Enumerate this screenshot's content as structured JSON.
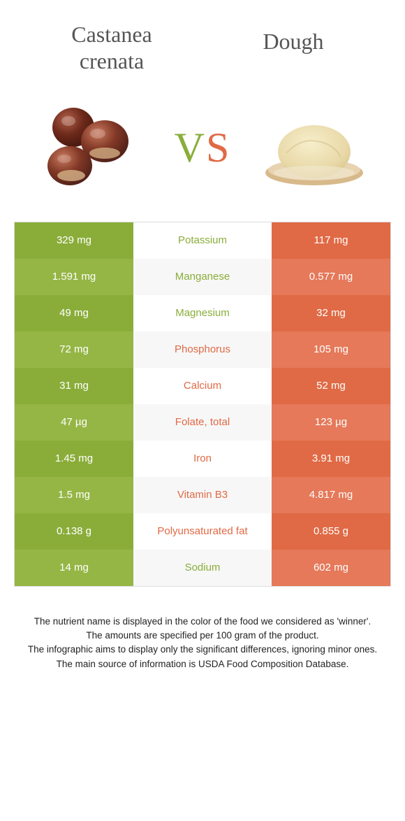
{
  "colors": {
    "green": "#8aad3a",
    "green_alt": "#95b645",
    "orange": "#e06a45",
    "orange_alt": "#e5795a",
    "text": "#555555",
    "footer_text": "#222222"
  },
  "header": {
    "left_title_line1": "Castanea",
    "left_title_line2": "crenata",
    "right_title": "Dough"
  },
  "vs": {
    "v": "V",
    "s": "S"
  },
  "rows": [
    {
      "left": "329 mg",
      "label": "Potassium",
      "right": "117 mg",
      "winner": "left"
    },
    {
      "left": "1.591 mg",
      "label": "Manganese",
      "right": "0.577 mg",
      "winner": "left"
    },
    {
      "left": "49 mg",
      "label": "Magnesium",
      "right": "32 mg",
      "winner": "left"
    },
    {
      "left": "72 mg",
      "label": "Phosphorus",
      "right": "105 mg",
      "winner": "right"
    },
    {
      "left": "31 mg",
      "label": "Calcium",
      "right": "52 mg",
      "winner": "right"
    },
    {
      "left": "47 µg",
      "label": "Folate, total",
      "right": "123 µg",
      "winner": "right"
    },
    {
      "left": "1.45 mg",
      "label": "Iron",
      "right": "3.91 mg",
      "winner": "right"
    },
    {
      "left": "1.5 mg",
      "label": "Vitamin B3",
      "right": "4.817 mg",
      "winner": "right"
    },
    {
      "left": "0.138 g",
      "label": "Polyunsaturated fat",
      "right": "0.855 g",
      "winner": "right"
    },
    {
      "left": "14 mg",
      "label": "Sodium",
      "right": "602 mg",
      "winner": "left"
    }
  ],
  "footer": {
    "line1": "The nutrient name is displayed in the color of the food we considered as 'winner'.",
    "line2": "The amounts are specified per 100 gram of the product.",
    "line3": "The infographic aims to display only the significant differences, ignoring minor ones.",
    "line4": "The main source of information is USDA Food Composition Database."
  }
}
